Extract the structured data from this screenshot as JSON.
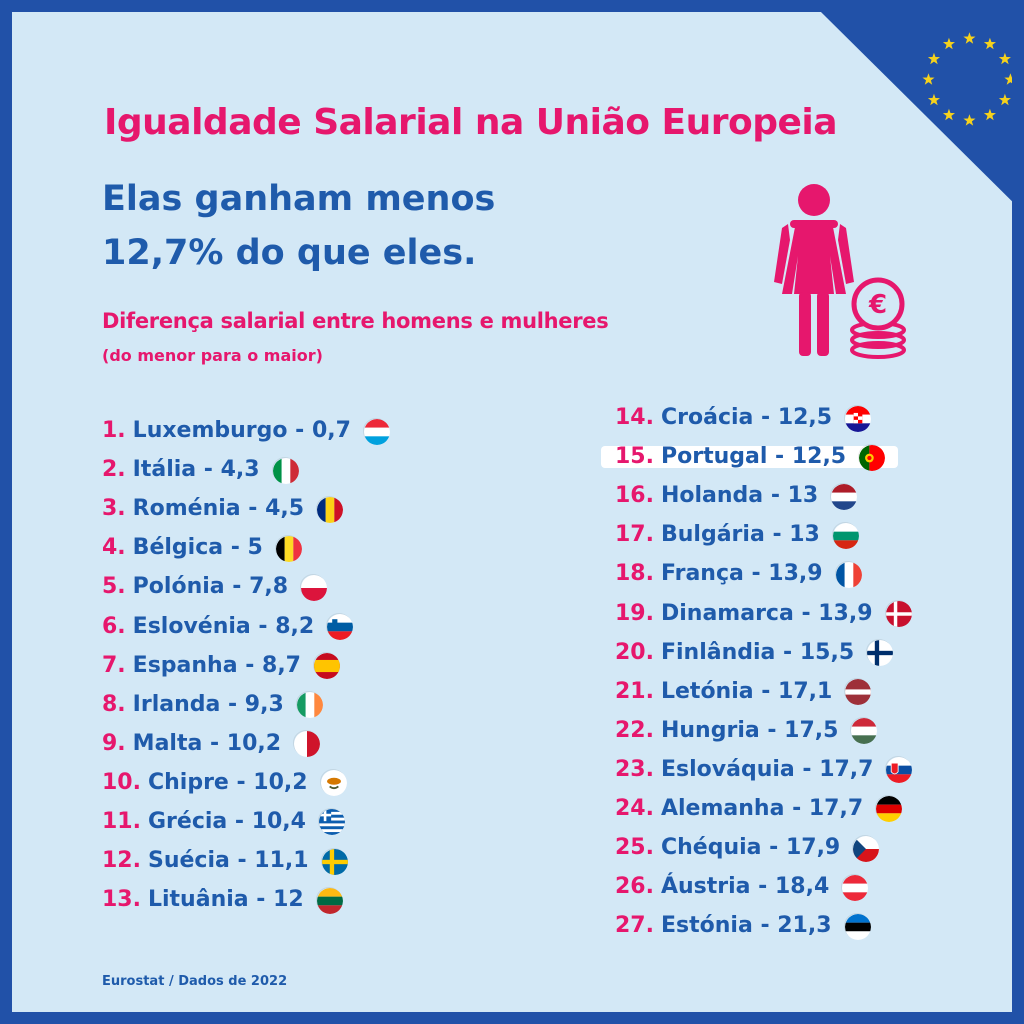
{
  "title": "Igualdade Salarial na União Europeia",
  "headline": {
    "line1": "Elas ganham menos",
    "line2": "12,7% do que eles."
  },
  "subtitle": "Diferença salarial entre homens e mulheres",
  "subnote": "(do menor para o maior)",
  "icon_woman": "woman-with-euro-coins-icon",
  "icon_eu": "eu-stars-icon",
  "highlight_color": "#ffffff",
  "colors": {
    "pink": "#e6176d",
    "blue": "#1f5bab",
    "eu_blue": "#2151a8",
    "star": "#f6d21c"
  },
  "countries_left": [
    {
      "rank": "1.",
      "label": "Luxemburgo - 0,7",
      "flag": "luxembourg-flag-icon"
    },
    {
      "rank": "2.",
      "label": "Itália - 4,3",
      "flag": "italy-flag-icon"
    },
    {
      "rank": "3.",
      "label": "Roménia - 4,5",
      "flag": "romania-flag-icon"
    },
    {
      "rank": "4.",
      "label": "Bélgica - 5",
      "flag": "belgium-flag-icon"
    },
    {
      "rank": "5.",
      "label": "Polónia - 7,8",
      "flag": "poland-flag-icon"
    },
    {
      "rank": "6.",
      "label": "Eslovénia - 8,2",
      "flag": "slovenia-flag-icon"
    },
    {
      "rank": "7.",
      "label": "Espanha - 8,7",
      "flag": "spain-flag-icon"
    },
    {
      "rank": "8.",
      "label": "Irlanda - 9,3",
      "flag": "ireland-flag-icon"
    },
    {
      "rank": "9.",
      "label": "Malta - 10,2",
      "flag": "malta-flag-icon"
    },
    {
      "rank": "10.",
      "label": "Chipre - 10,2",
      "flag": "cyprus-flag-icon"
    },
    {
      "rank": "11.",
      "label": "Grécia - 10,4",
      "flag": "greece-flag-icon"
    },
    {
      "rank": "12.",
      "label": "Suécia - 11,1",
      "flag": "sweden-flag-icon"
    },
    {
      "rank": "13.",
      "label": "Lituânia - 12",
      "flag": "lithuania-flag-icon"
    }
  ],
  "countries_right": [
    {
      "rank": "14.",
      "label": "Croácia - 12,5",
      "flag": "croatia-flag-icon"
    },
    {
      "rank": "15.",
      "label": "Portugal - 12,5",
      "flag": "portugal-flag-icon",
      "highlight": true
    },
    {
      "rank": "16.",
      "label": "Holanda - 13",
      "flag": "netherlands-flag-icon"
    },
    {
      "rank": "17.",
      "label": "Bulgária - 13",
      "flag": "bulgaria-flag-icon"
    },
    {
      "rank": "18.",
      "label": "França - 13,9",
      "flag": "france-flag-icon"
    },
    {
      "rank": "19.",
      "label": "Dinamarca - 13,9",
      "flag": "denmark-flag-icon"
    },
    {
      "rank": "20.",
      "label": "Finlândia - 15,5",
      "flag": "finland-flag-icon"
    },
    {
      "rank": "21.",
      "label": "Letónia - 17,1",
      "flag": "latvia-flag-icon"
    },
    {
      "rank": "22.",
      "label": "Hungria - 17,5",
      "flag": "hungary-flag-icon"
    },
    {
      "rank": "23.",
      "label": "Eslováquia - 17,7",
      "flag": "slovakia-flag-icon"
    },
    {
      "rank": "24.",
      "label": "Alemanha - 17,7",
      "flag": "germany-flag-icon"
    },
    {
      "rank": "25.",
      "label": "Chéquia - 17,9",
      "flag": "czechia-flag-icon"
    },
    {
      "rank": "26.",
      "label": "Áustria - 18,4",
      "flag": "austria-flag-icon"
    },
    {
      "rank": "27.",
      "label": "Estónia - 21,3",
      "flag": "estonia-flag-icon"
    }
  ],
  "source": "Eurostat / Dados de 2022"
}
